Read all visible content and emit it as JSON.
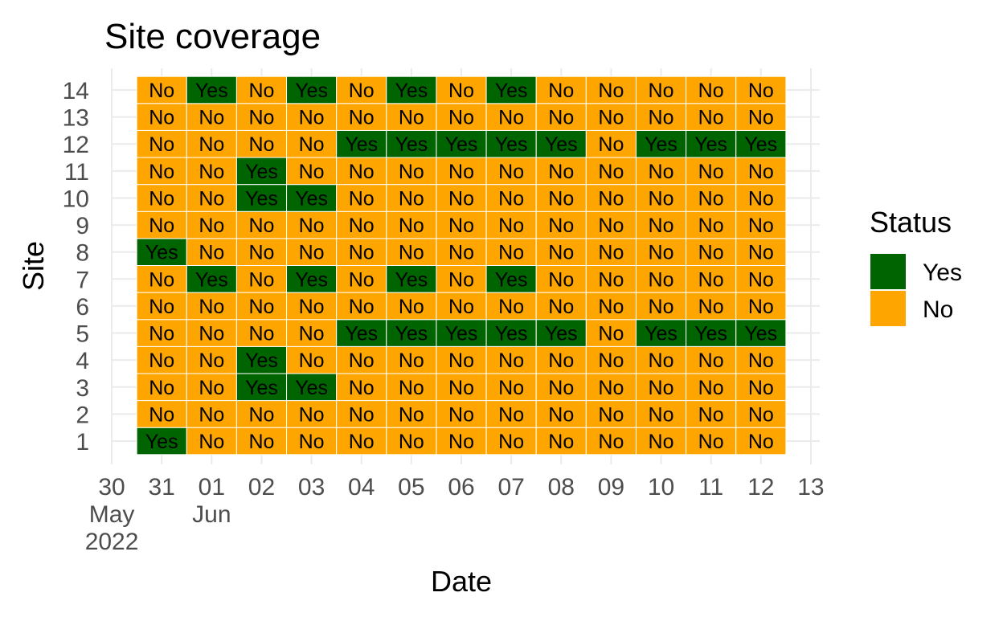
{
  "chart_data": {
    "type": "heatmap",
    "title": "Site coverage",
    "xlabel": "Date",
    "ylabel": "Site",
    "x_dates": [
      "2022-05-31",
      "2022-06-01",
      "2022-06-02",
      "2022-06-03",
      "2022-06-04",
      "2022-06-05",
      "2022-06-06",
      "2022-06-07",
      "2022-06-08",
      "2022-06-09",
      "2022-06-10",
      "2022-06-11",
      "2022-06-12"
    ],
    "x_ticks": [
      {
        "date": "2022-05-30",
        "label": [
          "30",
          "May",
          "2022"
        ]
      },
      {
        "date": "2022-05-31",
        "label": [
          "31"
        ]
      },
      {
        "date": "2022-06-01",
        "label": [
          "01",
          "Jun"
        ]
      },
      {
        "date": "2022-06-02",
        "label": [
          "02"
        ]
      },
      {
        "date": "2022-06-03",
        "label": [
          "03"
        ]
      },
      {
        "date": "2022-06-04",
        "label": [
          "04"
        ]
      },
      {
        "date": "2022-06-05",
        "label": [
          "05"
        ]
      },
      {
        "date": "2022-06-06",
        "label": [
          "06"
        ]
      },
      {
        "date": "2022-06-07",
        "label": [
          "07"
        ]
      },
      {
        "date": "2022-06-08",
        "label": [
          "08"
        ]
      },
      {
        "date": "2022-06-09",
        "label": [
          "09"
        ]
      },
      {
        "date": "2022-06-10",
        "label": [
          "10"
        ]
      },
      {
        "date": "2022-06-11",
        "label": [
          "11"
        ]
      },
      {
        "date": "2022-06-12",
        "label": [
          "12"
        ]
      },
      {
        "date": "2022-06-13",
        "label": [
          "13"
        ]
      }
    ],
    "x_range": [
      "2022-05-30",
      "2022-06-13"
    ],
    "sites": [
      1,
      2,
      3,
      4,
      5,
      6,
      7,
      8,
      9,
      10,
      11,
      12,
      13,
      14
    ],
    "y_range": [
      1,
      14
    ],
    "status_by_site": {
      "1": [
        "Yes",
        "No",
        "No",
        "No",
        "No",
        "No",
        "No",
        "No",
        "No",
        "No",
        "No",
        "No",
        "No"
      ],
      "2": [
        "No",
        "No",
        "No",
        "No",
        "No",
        "No",
        "No",
        "No",
        "No",
        "No",
        "No",
        "No",
        "No"
      ],
      "3": [
        "No",
        "No",
        "Yes",
        "Yes",
        "No",
        "No",
        "No",
        "No",
        "No",
        "No",
        "No",
        "No",
        "No"
      ],
      "4": [
        "No",
        "No",
        "Yes",
        "No",
        "No",
        "No",
        "No",
        "No",
        "No",
        "No",
        "No",
        "No",
        "No"
      ],
      "5": [
        "No",
        "No",
        "No",
        "No",
        "Yes",
        "Yes",
        "Yes",
        "Yes",
        "Yes",
        "No",
        "Yes",
        "Yes",
        "Yes"
      ],
      "6": [
        "No",
        "No",
        "No",
        "No",
        "No",
        "No",
        "No",
        "No",
        "No",
        "No",
        "No",
        "No",
        "No"
      ],
      "7": [
        "No",
        "Yes",
        "No",
        "Yes",
        "No",
        "Yes",
        "No",
        "Yes",
        "No",
        "No",
        "No",
        "No",
        "No"
      ],
      "8": [
        "Yes",
        "No",
        "No",
        "No",
        "No",
        "No",
        "No",
        "No",
        "No",
        "No",
        "No",
        "No",
        "No"
      ],
      "9": [
        "No",
        "No",
        "No",
        "No",
        "No",
        "No",
        "No",
        "No",
        "No",
        "No",
        "No",
        "No",
        "No"
      ],
      "10": [
        "No",
        "No",
        "Yes",
        "Yes",
        "No",
        "No",
        "No",
        "No",
        "No",
        "No",
        "No",
        "No",
        "No"
      ],
      "11": [
        "No",
        "No",
        "Yes",
        "No",
        "No",
        "No",
        "No",
        "No",
        "No",
        "No",
        "No",
        "No",
        "No"
      ],
      "12": [
        "No",
        "No",
        "No",
        "No",
        "Yes",
        "Yes",
        "Yes",
        "Yes",
        "Yes",
        "No",
        "Yes",
        "Yes",
        "Yes"
      ],
      "13": [
        "No",
        "No",
        "No",
        "No",
        "No",
        "No",
        "No",
        "No",
        "No",
        "No",
        "No",
        "No",
        "No"
      ],
      "14": [
        "No",
        "Yes",
        "No",
        "Yes",
        "No",
        "Yes",
        "No",
        "Yes",
        "No",
        "No",
        "No",
        "No",
        "No"
      ]
    },
    "legend": {
      "title": "Status",
      "position": "right",
      "entries": [
        {
          "label": "Yes",
          "color": "#006400"
        },
        {
          "label": "No",
          "color": "#FFA500"
        }
      ]
    },
    "grid": true
  }
}
